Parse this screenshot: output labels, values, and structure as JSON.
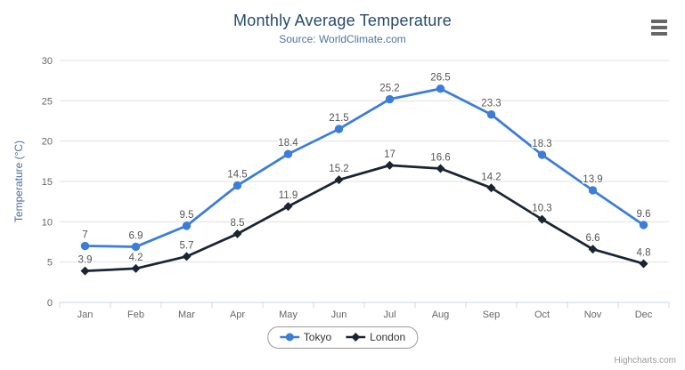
{
  "chart_data": {
    "type": "line",
    "title": "Monthly Average Temperature",
    "subtitle": "Source: WorldClimate.com",
    "categories": [
      "Jan",
      "Feb",
      "Mar",
      "Apr",
      "May",
      "Jun",
      "Jul",
      "Aug",
      "Sep",
      "Oct",
      "Nov",
      "Dec"
    ],
    "series": [
      {
        "name": "Tokyo",
        "color": "#3c7dd9",
        "marker": "circle",
        "values": [
          7,
          6.9,
          9.5,
          14.5,
          18.4,
          21.5,
          25.2,
          26.5,
          23.3,
          18.3,
          13.9,
          9.6
        ]
      },
      {
        "name": "London",
        "color": "#1a2433",
        "marker": "diamond",
        "values": [
          3.9,
          4.2,
          5.7,
          8.5,
          11.9,
          15.2,
          17,
          16.6,
          14.2,
          10.3,
          6.6,
          4.8
        ]
      }
    ],
    "xlabel": "",
    "ylabel": "Temperature (°C)",
    "ylim": [
      0,
      30
    ],
    "ytick_interval": 5,
    "grid": true,
    "legend_position": "bottom",
    "colors": {
      "title": "#274b6d",
      "subtitle": "#4d759e",
      "axis_title": "#4a6e96",
      "tick_label": "#666666",
      "gridline": "#e0e0e0",
      "axis_line": "#ccd6eb",
      "data_label": "#555555"
    }
  },
  "credits": {
    "label": "Highcharts.com"
  }
}
